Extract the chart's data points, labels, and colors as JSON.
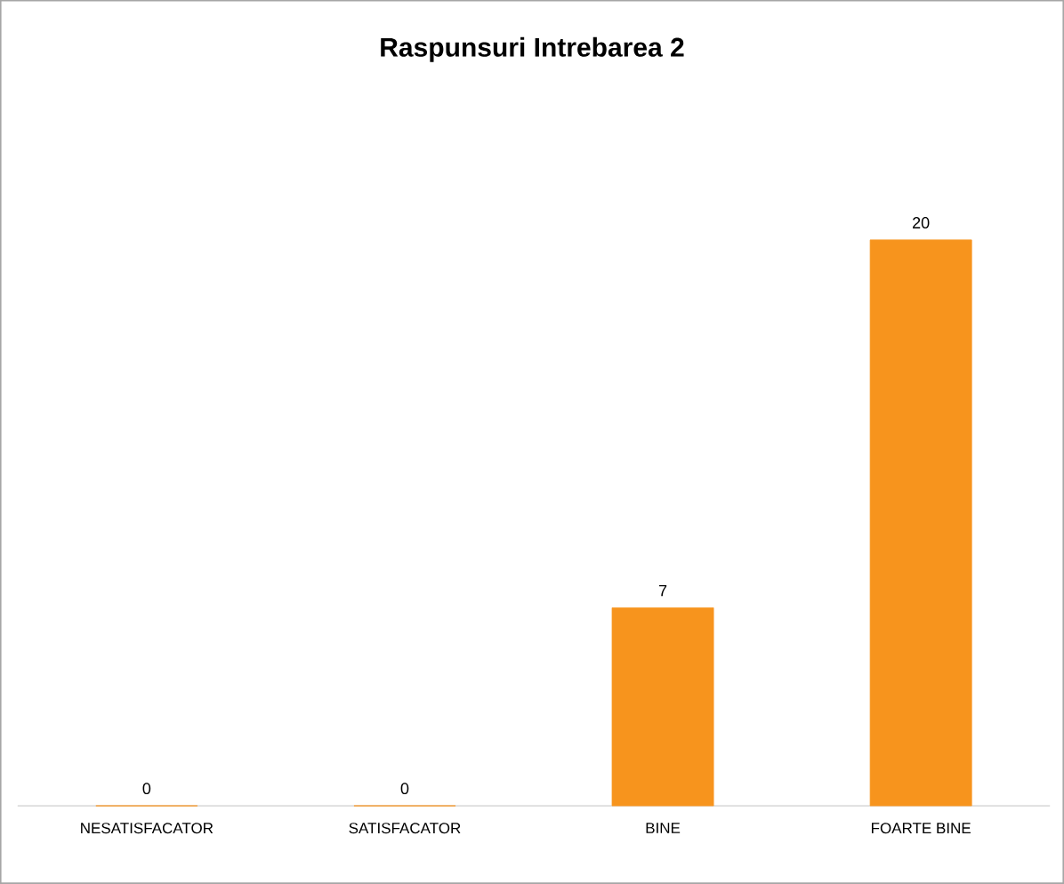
{
  "chart_data": {
    "type": "bar",
    "title": "Raspunsuri Intrebarea 2",
    "categories": [
      "NESATISFACATOR",
      "SATISFACATOR",
      "BINE",
      "FOARTE BINE"
    ],
    "values": [
      0,
      0,
      7,
      20
    ],
    "color": "#f7941d",
    "data_labels": true
  }
}
